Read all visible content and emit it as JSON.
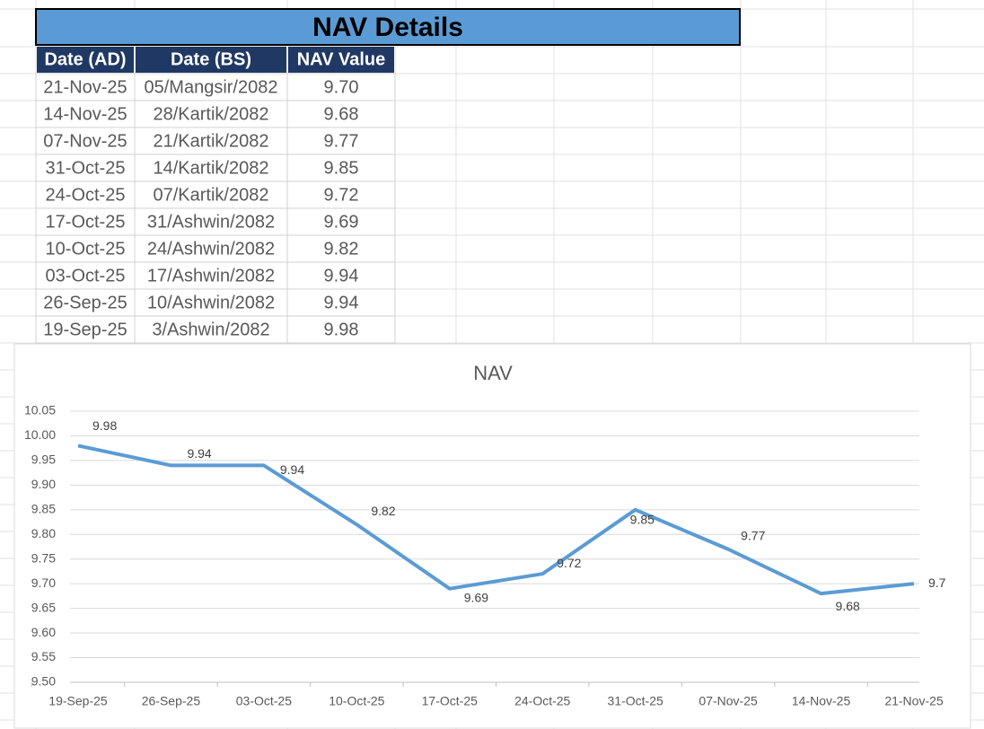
{
  "table": {
    "title": "NAV Details",
    "columns": [
      "Date (AD)",
      "Date (BS)",
      "NAV Value"
    ],
    "rows": [
      [
        "21-Nov-25",
        "05/Mangsir/2082",
        "9.70"
      ],
      [
        "14-Nov-25",
        "28/Kartik/2082",
        "9.68"
      ],
      [
        "07-Nov-25",
        "21/Kartik/2082",
        "9.77"
      ],
      [
        "31-Oct-25",
        "14/Kartik/2082",
        "9.85"
      ],
      [
        "24-Oct-25",
        "07/Kartik/2082",
        "9.72"
      ],
      [
        "17-Oct-25",
        "31/Ashwin/2082",
        "9.69"
      ],
      [
        "10-Oct-25",
        "24/Ashwin/2082",
        "9.82"
      ],
      [
        "03-Oct-25",
        "17/Ashwin/2082",
        "9.94"
      ],
      [
        "26-Sep-25",
        "10/Ashwin/2082",
        "9.94"
      ],
      [
        "19-Sep-25",
        "3/Ashwin/2082",
        "9.98"
      ]
    ]
  },
  "chart_data": {
    "type": "line",
    "title": "NAV",
    "categories": [
      "19-Sep-25",
      "26-Sep-25",
      "03-Oct-25",
      "10-Oct-25",
      "17-Oct-25",
      "24-Oct-25",
      "31-Oct-25",
      "07-Nov-25",
      "14-Nov-25",
      "21-Nov-25"
    ],
    "values": [
      9.98,
      9.94,
      9.94,
      9.82,
      9.69,
      9.72,
      9.85,
      9.77,
      9.68,
      9.7
    ],
    "color": "#5b9bd5",
    "ylim": [
      9.5,
      10.05
    ],
    "yticks": [
      {
        "value": 9.5,
        "label": "9.50"
      },
      9.55,
      {
        "value": 9.6,
        "label": "9.60"
      },
      9.65,
      {
        "value": 9.7,
        "label": "9.70"
      },
      9.75,
      {
        "value": 9.8,
        "label": "9.80"
      },
      9.85,
      {
        "value": 9.9,
        "label": "9.90"
      },
      9.95,
      {
        "value": 10,
        "label": "10.00"
      },
      10.05
    ],
    "grid": true,
    "data_labels": true
  }
}
